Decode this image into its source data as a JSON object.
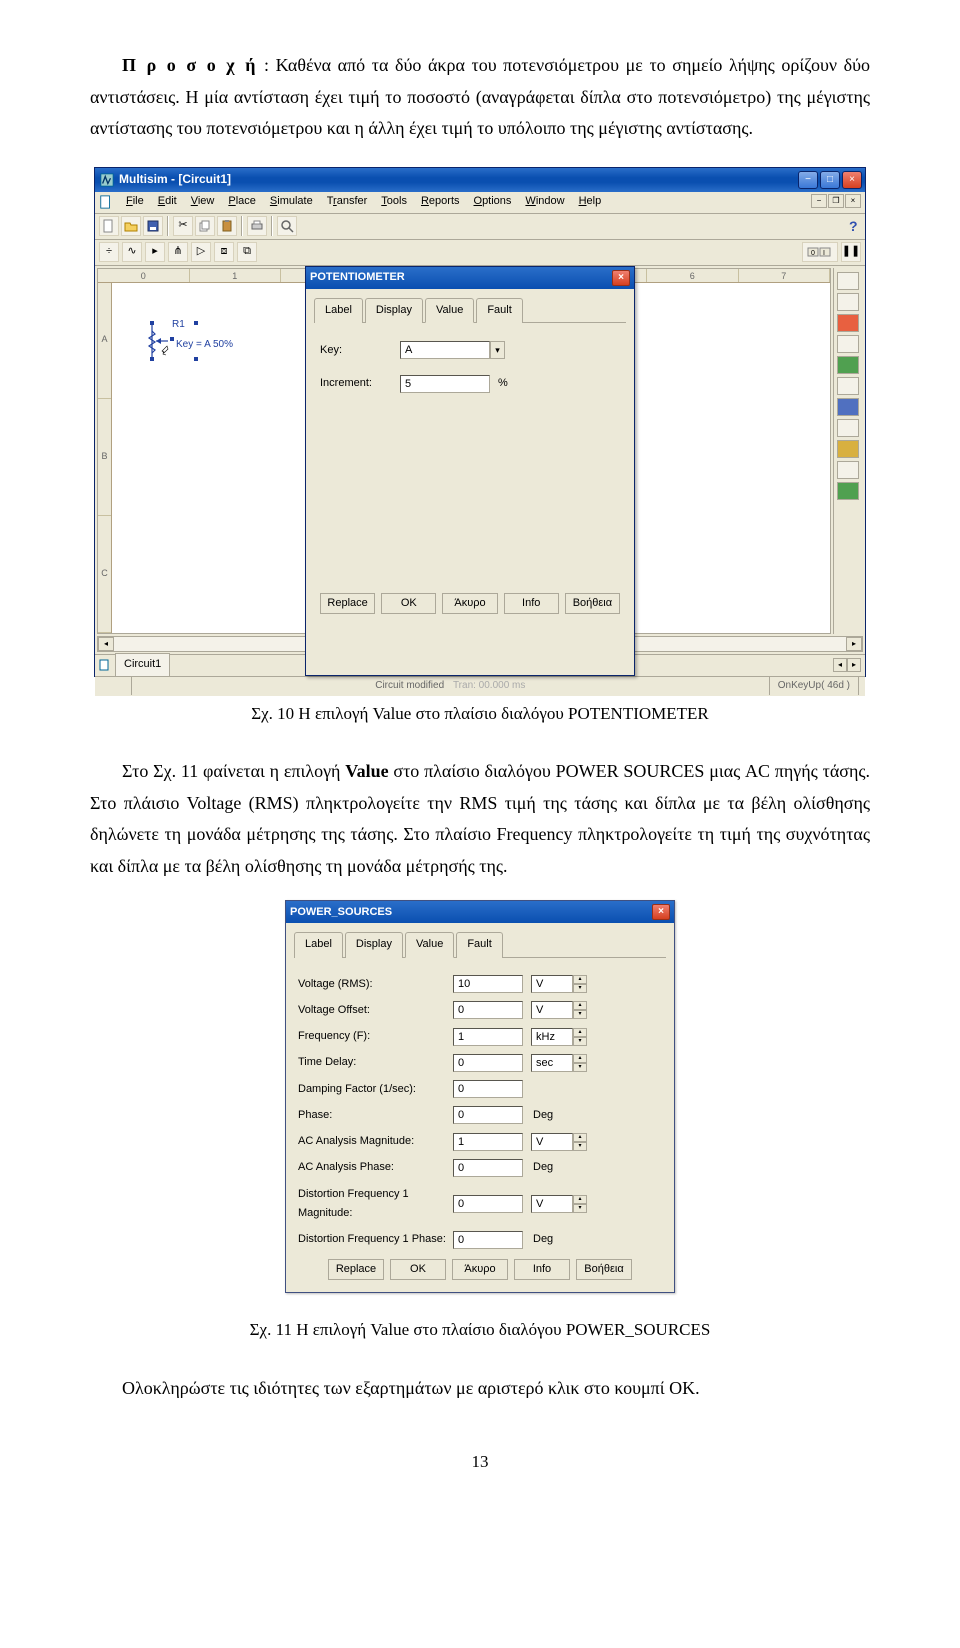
{
  "para1_prefix": "Π ρ ο σ ο χ ή",
  "para1_rest": ": Καθένα από τα δύο άκρα του ποτενσιόμετρου με το σημείο λήψης ορίζουν δύο αντιστάσεις. Η μία αντίσταση έχει τιμή το ποσοστό (αναγράφεται δίπλα στο ποτενσιόμετρο) της μέγιστης αντίστασης του ποτενσιόμετρου και η άλλη έχει τιμή το υπόλοιπο της μέγιστης αντίστασης.",
  "caption1": "Σχ. 10 Η επιλογή Value στο πλαίσιο διαλόγου POTENTIOMETER",
  "para2_a": "Στο Σχ. 11 φαίνεται η επιλογή ",
  "para2_b": "Value",
  "para2_c": " στο πλαίσιο διαλόγου POWER SOURCES μιας AC πηγής τάσης. Στο πλάισιο Voltage (RMS) πληκτρολογείτε την RMS τιμή της τάσης και δίπλα με τα βέλη ολίσθησης δηλώνετε τη μονάδα μέτρησης της τάσης. Στο πλαίσιο Frequency πληκτρολογείτε τη τιμή της συχνότητας και δίπλα με τα βέλη ολίσθησης τη μονάδα μέτρησής της.",
  "caption2": "Σχ. 11 Η επιλογή Value στο πλαίσιο διαλόγου POWER_SOURCES",
  "para3": "Ολοκληρώστε τις ιδιότητες των εξαρτημάτων με αριστερό κλικ στο κουμπί OK.",
  "page_number": "13",
  "ms": {
    "title": "Multisim - [Circuit1]",
    "menus": [
      "File",
      "Edit",
      "View",
      "Place",
      "Simulate",
      "Transfer",
      "Tools",
      "Reports",
      "Options",
      "Window",
      "Help"
    ],
    "ruler_top": [
      "0",
      "1",
      " ",
      " ",
      " ",
      " ",
      "6",
      "7"
    ],
    "ruler_left": [
      "A",
      "B",
      "C"
    ],
    "pot_label": "R1",
    "pot_text": "Key = A  50%",
    "tab": "Circuit1",
    "status_center": "Circuit modified",
    "status_info": "Tran: 00.000 ms",
    "status_right": "OnKeyUp( 46d )"
  },
  "pot_dialog": {
    "title": "POTENTIOMETER",
    "tabs": [
      "Label",
      "Display",
      "Value",
      "Fault"
    ],
    "key_label": "Key:",
    "key_value": "A",
    "inc_label": "Increment:",
    "inc_value": "5",
    "inc_unit": "%",
    "btns": [
      "Replace",
      "OK",
      "Άκυρο",
      "Info",
      "Βοήθεια"
    ]
  },
  "ps": {
    "title": "POWER_SOURCES",
    "tabs": [
      "Label",
      "Display",
      "Value",
      "Fault"
    ],
    "rows": [
      {
        "label": "Voltage (RMS):",
        "value": "10",
        "unit": "V",
        "spin": true
      },
      {
        "label": "Voltage Offset:",
        "value": "0",
        "unit": "V",
        "spin": true
      },
      {
        "label": "Frequency (F):",
        "value": "1",
        "unit": "kHz",
        "spin": true
      },
      {
        "label": "Time Delay:",
        "value": "0",
        "unit": "sec",
        "spin": true
      },
      {
        "label": "Damping Factor (1/sec):",
        "value": "0",
        "unit": "",
        "spin": false
      },
      {
        "label": "Phase:",
        "value": "0",
        "unit": "Deg",
        "spin": false
      },
      {
        "label": "AC Analysis Magnitude:",
        "value": "1",
        "unit": "V",
        "spin": true
      },
      {
        "label": "AC Analysis Phase:",
        "value": "0",
        "unit": "Deg",
        "spin": false
      },
      {
        "label": "Distortion Frequency 1 Magnitude:",
        "value": "0",
        "unit": "V",
        "spin": true
      },
      {
        "label": "Distortion Frequency 1 Phase:",
        "value": "0",
        "unit": "Deg",
        "spin": false
      }
    ],
    "btns": [
      "Replace",
      "OK",
      "Άκυρο",
      "Info",
      "Βοήθεια"
    ]
  }
}
